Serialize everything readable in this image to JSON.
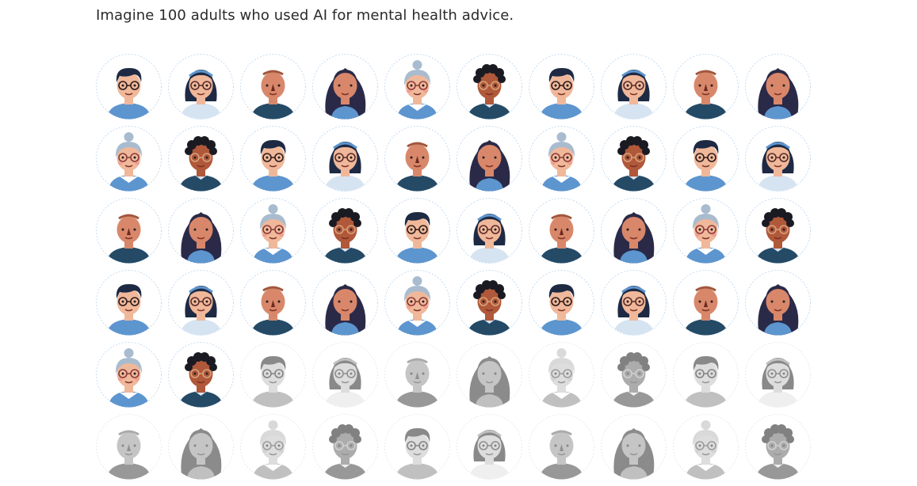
{
  "headline": "Imagine 100 adults who used AI for mental health advice.",
  "colors": {
    "text": "#2a2a2a",
    "ring": "#b9d3ee",
    "skin_light": "#f0b89a",
    "skin_tan": "#d9876a",
    "skin_dark": "#b0583a",
    "hair_dark": "#1e2a44",
    "hair_gray": "#a9bccf",
    "shirt_blue": "#5d95cf",
    "shirt_navy": "#244a66",
    "shirt_pale": "#d6e4f2"
  },
  "figure": {
    "total_people": 100,
    "highlighted_count": 42,
    "visible_rows": 6,
    "columns": 10,
    "avatar_cycle": [
      "boy-glasses",
      "girl-headband",
      "bald-man",
      "curly-woman",
      "grandma-bun",
      "curly-man"
    ]
  }
}
